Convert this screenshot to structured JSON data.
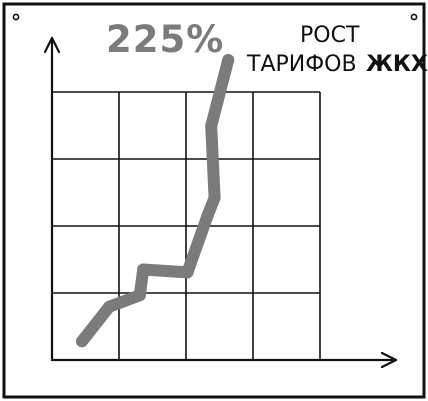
{
  "chart_data": {
    "type": "line",
    "title": "РОСТ ТАРИФОВ ЖКХ",
    "title_lines": [
      "РОСТ",
      "ТАРИФОВ",
      "ЖКХ"
    ],
    "annotation": "225%",
    "grid": true,
    "x_ticks_visible": false,
    "y_ticks_visible": false,
    "x_normalized": [
      0.0,
      0.08,
      0.17,
      0.18,
      0.31,
      0.37,
      0.39,
      0.38,
      0.43
    ],
    "y_normalized": [
      0.02,
      0.14,
      0.18,
      0.27,
      0.26,
      0.46,
      0.52,
      0.77,
      1.0
    ],
    "line_color": "#7b7b7b",
    "ink_color": "#111111"
  }
}
